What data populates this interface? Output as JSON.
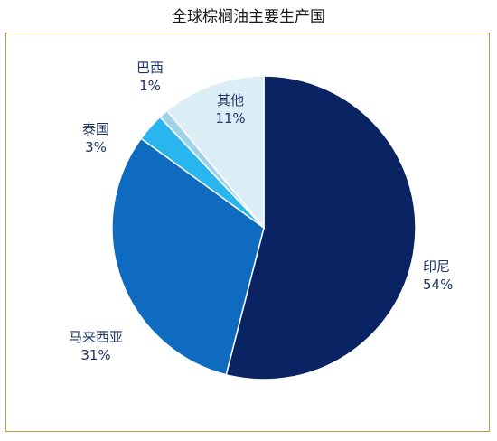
{
  "chart_data": {
    "type": "pie",
    "title": "全球棕榈油主要生产国",
    "slices": [
      {
        "name": "印尼",
        "value": 54,
        "label": "54%",
        "color": "#0a2463"
      },
      {
        "name": "马来西亚",
        "value": 31,
        "label": "31%",
        "color": "#0e6bbf"
      },
      {
        "name": "泰国",
        "value": 3,
        "label": "3%",
        "color": "#29b6ee"
      },
      {
        "name": "巴西",
        "value": 1,
        "label": "1%",
        "color": "#9fd3e8"
      },
      {
        "name": "其他",
        "value": 11,
        "label": "11%",
        "color": "#dceef5"
      }
    ],
    "label_color": "#1f3566",
    "border_color": "#b49a52"
  }
}
